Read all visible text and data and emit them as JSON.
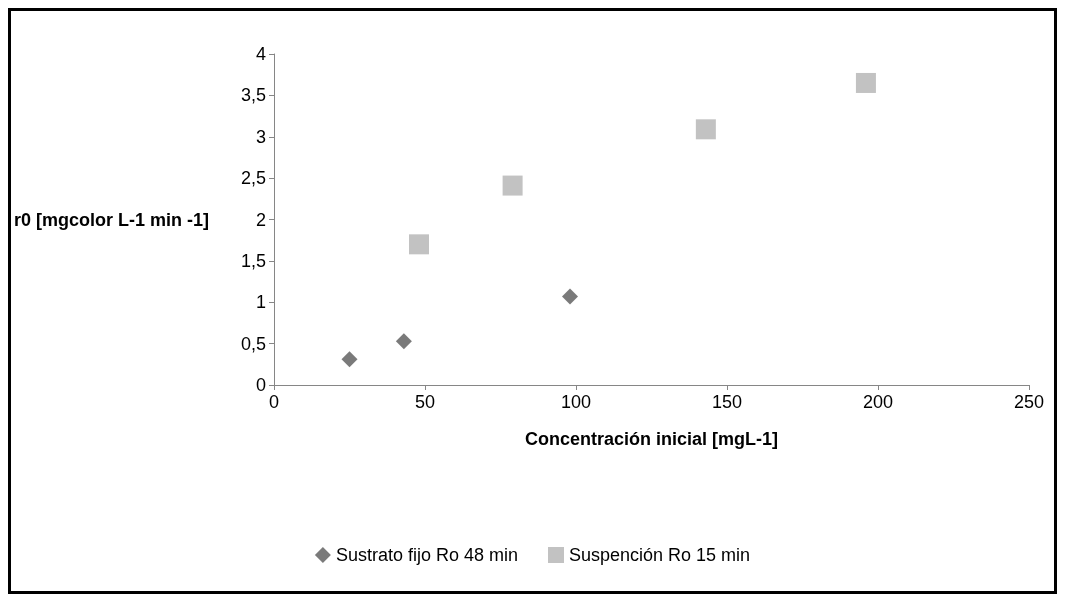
{
  "chart_data": {
    "type": "scatter",
    "xlabel": "Concentración inicial [mgL-1]",
    "ylabel": "r0 [mgcolor L-1 min -1]",
    "xlim": [
      0,
      250
    ],
    "xticks": [
      0,
      50,
      100,
      150,
      200,
      250
    ],
    "ylim": [
      0,
      4
    ],
    "yticks": [
      0,
      {
        "value": 0.5,
        "label": "0,5"
      },
      1,
      {
        "value": 1.5,
        "label": "1,5"
      },
      2,
      {
        "value": 2.5,
        "label": "2,5"
      },
      3,
      {
        "value": 3.5,
        "label": "3,5"
      },
      4
    ],
    "grid": false,
    "legend": "bottom",
    "series": [
      {
        "name": "Sustrato fijo Ro 48 min",
        "color": "#595959",
        "marker": "diamond",
        "x": [
          25,
          43,
          98
        ],
        "values": [
          0.31,
          0.53,
          1.07
        ]
      },
      {
        "name": "Suspención Ro 15 min",
        "color": "#b3b3b3",
        "marker": "square",
        "x": [
          48,
          79,
          143,
          196
        ],
        "values": [
          1.7,
          2.41,
          3.09,
          3.65
        ]
      }
    ]
  }
}
